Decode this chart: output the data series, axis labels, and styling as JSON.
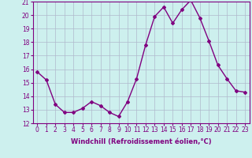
{
  "x": [
    0,
    1,
    2,
    3,
    4,
    5,
    6,
    7,
    8,
    9,
    10,
    11,
    12,
    13,
    14,
    15,
    16,
    17,
    18,
    19,
    20,
    21,
    22,
    23
  ],
  "y": [
    15.8,
    15.2,
    13.4,
    12.8,
    12.8,
    13.1,
    13.6,
    13.3,
    12.8,
    12.5,
    13.6,
    15.3,
    17.8,
    19.9,
    20.6,
    19.4,
    20.4,
    21.1,
    19.8,
    18.1,
    16.3,
    15.3,
    14.4,
    14.3
  ],
  "line_color": "#800080",
  "marker": "D",
  "marker_size": 2.0,
  "background_color": "#cdf0ee",
  "grid_color": "#b0b8cc",
  "xlabel": "Windchill (Refroidissement éolien,°C)",
  "xlabel_color": "#800080",
  "tick_color": "#800080",
  "ylim": [
    12,
    21
  ],
  "yticks": [
    12,
    13,
    14,
    15,
    16,
    17,
    18,
    19,
    20,
    21
  ],
  "xticks": [
    0,
    1,
    2,
    3,
    4,
    5,
    6,
    7,
    8,
    9,
    10,
    11,
    12,
    13,
    14,
    15,
    16,
    17,
    18,
    19,
    20,
    21,
    22,
    23
  ],
  "xtick_labels": [
    "0",
    "1",
    "2",
    "3",
    "4",
    "5",
    "6",
    "7",
    "8",
    "9",
    "10",
    "11",
    "12",
    "13",
    "14",
    "15",
    "16",
    "17",
    "18",
    "19",
    "20",
    "21",
    "22",
    "23"
  ],
  "spine_color": "#800080",
  "tick_fontsize": 5.5,
  "xlabel_fontsize": 6.0,
  "linewidth": 1.0
}
